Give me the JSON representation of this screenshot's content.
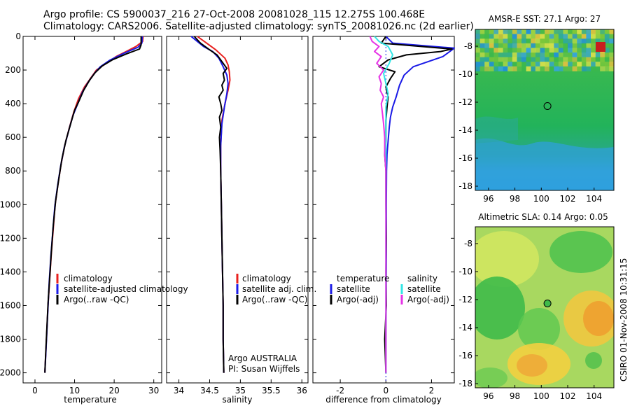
{
  "header": {
    "line1": "Argo profile: CS 5900037_216 27-Oct-2008 20081028_115 12.275S 100.468E",
    "line2": "Climatology: CARS2006. Satellite-adjusted climatology: synTS_20081026.nc (2d earlier)"
  },
  "side_stamp": "CSIRO 01-Nov-2008 10:31:15",
  "colors": {
    "climatology": "#e8201e",
    "satellite": "#1a1ae6",
    "argo": "#000000",
    "salinity_satellite": "#33e6e6",
    "salinity_argo": "#e633e6"
  },
  "chart_data": [
    {
      "type": "line",
      "xlabel": "temperature",
      "xlim": [
        -3,
        32
      ],
      "xticks": [
        0,
        10,
        20,
        30
      ],
      "ylim": [
        0,
        2060
      ],
      "yticks": [
        0,
        200,
        400,
        600,
        800,
        1000,
        1200,
        1400,
        1600,
        1800,
        2000
      ],
      "yaxis_inverted": true,
      "legend": [
        "climatology",
        "satellite-adjusted climatology",
        "Argo(..raw -QC)"
      ],
      "series": [
        {
          "name": "climatology",
          "color": "#e8201e",
          "points": [
            [
              27.3,
              0
            ],
            [
              27.2,
              30
            ],
            [
              25.5,
              60
            ],
            [
              23.0,
              90
            ],
            [
              20.5,
              120
            ],
            [
              18.0,
              160
            ],
            [
              15.5,
              200
            ],
            [
              14.0,
              250
            ],
            [
              12.5,
              300
            ],
            [
              11.0,
              370
            ],
            [
              9.8,
              450
            ],
            [
              8.6,
              550
            ],
            [
              7.5,
              650
            ],
            [
              6.6,
              760
            ],
            [
              5.8,
              880
            ],
            [
              5.1,
              1000
            ],
            [
              4.6,
              1150
            ],
            [
              4.1,
              1300
            ],
            [
              3.7,
              1450
            ],
            [
              3.3,
              1600
            ],
            [
              3.0,
              1750
            ],
            [
              2.7,
              1900
            ],
            [
              2.5,
              2000
            ]
          ]
        },
        {
          "name": "satellite-adjusted climatology",
          "color": "#1a1ae6",
          "points": [
            [
              27.1,
              0
            ],
            [
              27.0,
              40
            ],
            [
              26.0,
              65
            ],
            [
              22.5,
              100
            ],
            [
              19.0,
              140
            ],
            [
              16.5,
              180
            ],
            [
              15.0,
              220
            ],
            [
              13.5,
              270
            ],
            [
              12.0,
              330
            ],
            [
              10.8,
              400
            ],
            [
              9.6,
              470
            ],
            [
              8.5,
              560
            ],
            [
              7.4,
              660
            ],
            [
              6.5,
              770
            ],
            [
              5.7,
              890
            ],
            [
              5.0,
              1010
            ],
            [
              4.5,
              1160
            ],
            [
              4.0,
              1310
            ],
            [
              3.6,
              1460
            ],
            [
              3.3,
              1610
            ],
            [
              3.0,
              1760
            ],
            [
              2.7,
              1910
            ],
            [
              2.5,
              2000
            ]
          ]
        },
        {
          "name": "Argo(..raw -QC)",
          "color": "#000000",
          "points": [
            [
              26.8,
              0
            ],
            [
              26.8,
              50
            ],
            [
              26.4,
              75
            ],
            [
              23.0,
              105
            ],
            [
              19.5,
              140
            ],
            [
              17.0,
              175
            ],
            [
              15.2,
              215
            ],
            [
              13.8,
              260
            ],
            [
              12.3,
              320
            ],
            [
              11.0,
              390
            ],
            [
              10.0,
              440
            ],
            [
              9.0,
              520
            ],
            [
              7.8,
              620
            ],
            [
              6.8,
              730
            ],
            [
              6.0,
              850
            ],
            [
              5.2,
              980
            ],
            [
              4.6,
              1130
            ],
            [
              4.1,
              1290
            ],
            [
              3.7,
              1440
            ],
            [
              3.3,
              1590
            ],
            [
              3.0,
              1740
            ],
            [
              2.7,
              1890
            ],
            [
              2.5,
              2000
            ]
          ]
        }
      ]
    },
    {
      "type": "line",
      "xlabel": "salinity",
      "xlim": [
        33.8,
        36.1
      ],
      "xticks": [
        34,
        34.5,
        35,
        35.5,
        36
      ],
      "ylim": [
        0,
        2060
      ],
      "yaxis_inverted": true,
      "legend": [
        "climatology",
        "satellite adj. clim.",
        "Argo(..raw -QC)"
      ],
      "annotations": [
        "Argo AUSTRALIA",
        "PI: Susan Wijffels"
      ],
      "series": [
        {
          "name": "climatology",
          "color": "#e8201e",
          "points": [
            [
              34.3,
              0
            ],
            [
              34.45,
              40
            ],
            [
              34.6,
              80
            ],
            [
              34.75,
              130
            ],
            [
              34.8,
              170
            ],
            [
              34.82,
              210
            ],
            [
              34.83,
              260
            ],
            [
              34.8,
              320
            ],
            [
              34.75,
              400
            ],
            [
              34.7,
              500
            ],
            [
              34.68,
              650
            ],
            [
              34.68,
              800
            ],
            [
              34.69,
              1000
            ],
            [
              34.7,
              1200
            ],
            [
              34.71,
              1400
            ],
            [
              34.72,
              1600
            ],
            [
              34.72,
              1800
            ],
            [
              34.73,
              2000
            ]
          ]
        },
        {
          "name": "satellite adj. clim.",
          "color": "#1a1ae6",
          "points": [
            [
              34.2,
              0
            ],
            [
              34.3,
              30
            ],
            [
              34.4,
              60
            ],
            [
              34.55,
              90
            ],
            [
              34.65,
              130
            ],
            [
              34.72,
              180
            ],
            [
              34.78,
              230
            ],
            [
              34.8,
              280
            ],
            [
              34.78,
              340
            ],
            [
              34.74,
              420
            ],
            [
              34.7,
              520
            ],
            [
              34.68,
              650
            ],
            [
              34.68,
              800
            ],
            [
              34.69,
              1000
            ],
            [
              34.7,
              1200
            ],
            [
              34.71,
              1400
            ],
            [
              34.72,
              1600
            ],
            [
              34.72,
              1800
            ],
            [
              34.73,
              2000
            ]
          ]
        },
        {
          "name": "Argo(..raw -QC)",
          "color": "#000000",
          "points": [
            [
              34.25,
              0
            ],
            [
              34.35,
              40
            ],
            [
              34.5,
              80
            ],
            [
              34.62,
              110
            ],
            [
              34.7,
              150
            ],
            [
              34.78,
              190
            ],
            [
              34.72,
              220
            ],
            [
              34.74,
              260
            ],
            [
              34.7,
              290
            ],
            [
              34.72,
              320
            ],
            [
              34.65,
              360
            ],
            [
              34.68,
              400
            ],
            [
              34.7,
              440
            ],
            [
              34.66,
              480
            ],
            [
              34.68,
              540
            ],
            [
              34.66,
              600
            ],
            [
              34.67,
              680
            ],
            [
              34.68,
              800
            ],
            [
              34.69,
              1000
            ],
            [
              34.7,
              1200
            ],
            [
              34.71,
              1400
            ],
            [
              34.72,
              1600
            ],
            [
              34.72,
              1800
            ],
            [
              34.73,
              2000
            ]
          ]
        }
      ]
    },
    {
      "type": "line",
      "xlabel": "difference from climatology",
      "xlim": [
        -3.2,
        3
      ],
      "xticks": [
        -2,
        0,
        2
      ],
      "ylim": [
        0,
        2060
      ],
      "yaxis_inverted": true,
      "legend_groups": [
        {
          "title": "temperature",
          "items": [
            "satellite",
            "Argo(-adj)"
          ]
        },
        {
          "title": "salinity",
          "items": [
            "satellite",
            "Argo(-adj)"
          ]
        }
      ],
      "series": [
        {
          "name": "temperature satellite",
          "color": "#1a1ae6",
          "points": [
            [
              0,
              0
            ],
            [
              0.3,
              40
            ],
            [
              3.0,
              70
            ],
            [
              2.5,
              120
            ],
            [
              1.2,
              180
            ],
            [
              0.8,
              230
            ],
            [
              0.6,
              290
            ],
            [
              0.45,
              360
            ],
            [
              0.3,
              420
            ],
            [
              0.2,
              480
            ],
            [
              0.15,
              540
            ],
            [
              0.1,
              620
            ],
            [
              0.05,
              700
            ],
            [
              0.03,
              800
            ],
            [
              0.02,
              1000
            ],
            [
              0.02,
              1300
            ],
            [
              0.01,
              1600
            ],
            [
              0.0,
              2000
            ]
          ]
        },
        {
          "name": "temperature Argo(-adj)",
          "color": "#000000",
          "points": [
            [
              0,
              0
            ],
            [
              -0.2,
              40
            ],
            [
              2.9,
              75
            ],
            [
              2.4,
              90
            ],
            [
              0.9,
              110
            ],
            [
              0.1,
              140
            ],
            [
              -0.3,
              180
            ],
            [
              0.4,
              210
            ],
            [
              0.2,
              250
            ],
            [
              0.0,
              300
            ],
            [
              0.1,
              360
            ],
            [
              0.05,
              420
            ],
            [
              0.0,
              500
            ],
            [
              0.0,
              620
            ],
            [
              -0.05,
              700
            ],
            [
              0.0,
              800
            ],
            [
              0.0,
              1000
            ],
            [
              0.02,
              1200
            ],
            [
              0.0,
              1400
            ],
            [
              0.02,
              1600
            ],
            [
              -0.05,
              1800
            ],
            [
              0.0,
              2000
            ]
          ]
        },
        {
          "name": "salinity satellite",
          "color": "#33e6e6",
          "points": [
            [
              -0.5,
              0
            ],
            [
              -0.3,
              30
            ],
            [
              0.1,
              60
            ],
            [
              0.3,
              110
            ],
            [
              0.15,
              160
            ],
            [
              -0.1,
              220
            ],
            [
              0.0,
              280
            ],
            [
              0.1,
              340
            ],
            [
              0.0,
              420
            ],
            [
              0.0,
              520
            ],
            [
              0.0,
              650
            ],
            [
              0.0,
              800
            ],
            [
              0.0,
              1000
            ],
            [
              0.0,
              1300
            ],
            [
              0.0,
              1600
            ],
            [
              0.0,
              2000
            ]
          ]
        },
        {
          "name": "salinity Argo(-adj)",
          "color": "#e633e6",
          "points": [
            [
              -0.7,
              0
            ],
            [
              -0.6,
              30
            ],
            [
              -0.3,
              60
            ],
            [
              -0.5,
              90
            ],
            [
              -0.2,
              120
            ],
            [
              -0.4,
              160
            ],
            [
              -0.1,
              200
            ],
            [
              -0.3,
              240
            ],
            [
              -0.2,
              280
            ],
            [
              -0.25,
              320
            ],
            [
              -0.1,
              360
            ],
            [
              -0.2,
              400
            ],
            [
              -0.15,
              460
            ],
            [
              -0.1,
              520
            ],
            [
              -0.05,
              600
            ],
            [
              -0.05,
              700
            ],
            [
              0.0,
              800
            ],
            [
              0.0,
              1000
            ],
            [
              0.0,
              1300
            ],
            [
              0.0,
              1600
            ],
            [
              0.0,
              2000
            ]
          ]
        }
      ]
    },
    {
      "type": "heatmap",
      "title": "AMSR-E SST: 27.1  Argo: 27",
      "xlim": [
        95,
        105.5
      ],
      "xticks": [
        96,
        98,
        100,
        102,
        104
      ],
      "ylim": [
        -18.3,
        -6.8
      ],
      "yticks": [
        -8,
        -10,
        -12,
        -14,
        -16,
        -18
      ],
      "profile_location": [
        100.468,
        -12.275
      ]
    },
    {
      "type": "heatmap",
      "title": "Altimetric SLA: 0.14  Argo: 0.05",
      "xlim": [
        95,
        105.5
      ],
      "xticks": [
        96,
        98,
        100,
        102,
        104
      ],
      "ylim": [
        -18.3,
        -6.8
      ],
      "yticks": [
        -8,
        -10,
        -12,
        -14,
        -16,
        -18
      ],
      "profile_location": [
        100.468,
        -12.275
      ]
    }
  ]
}
